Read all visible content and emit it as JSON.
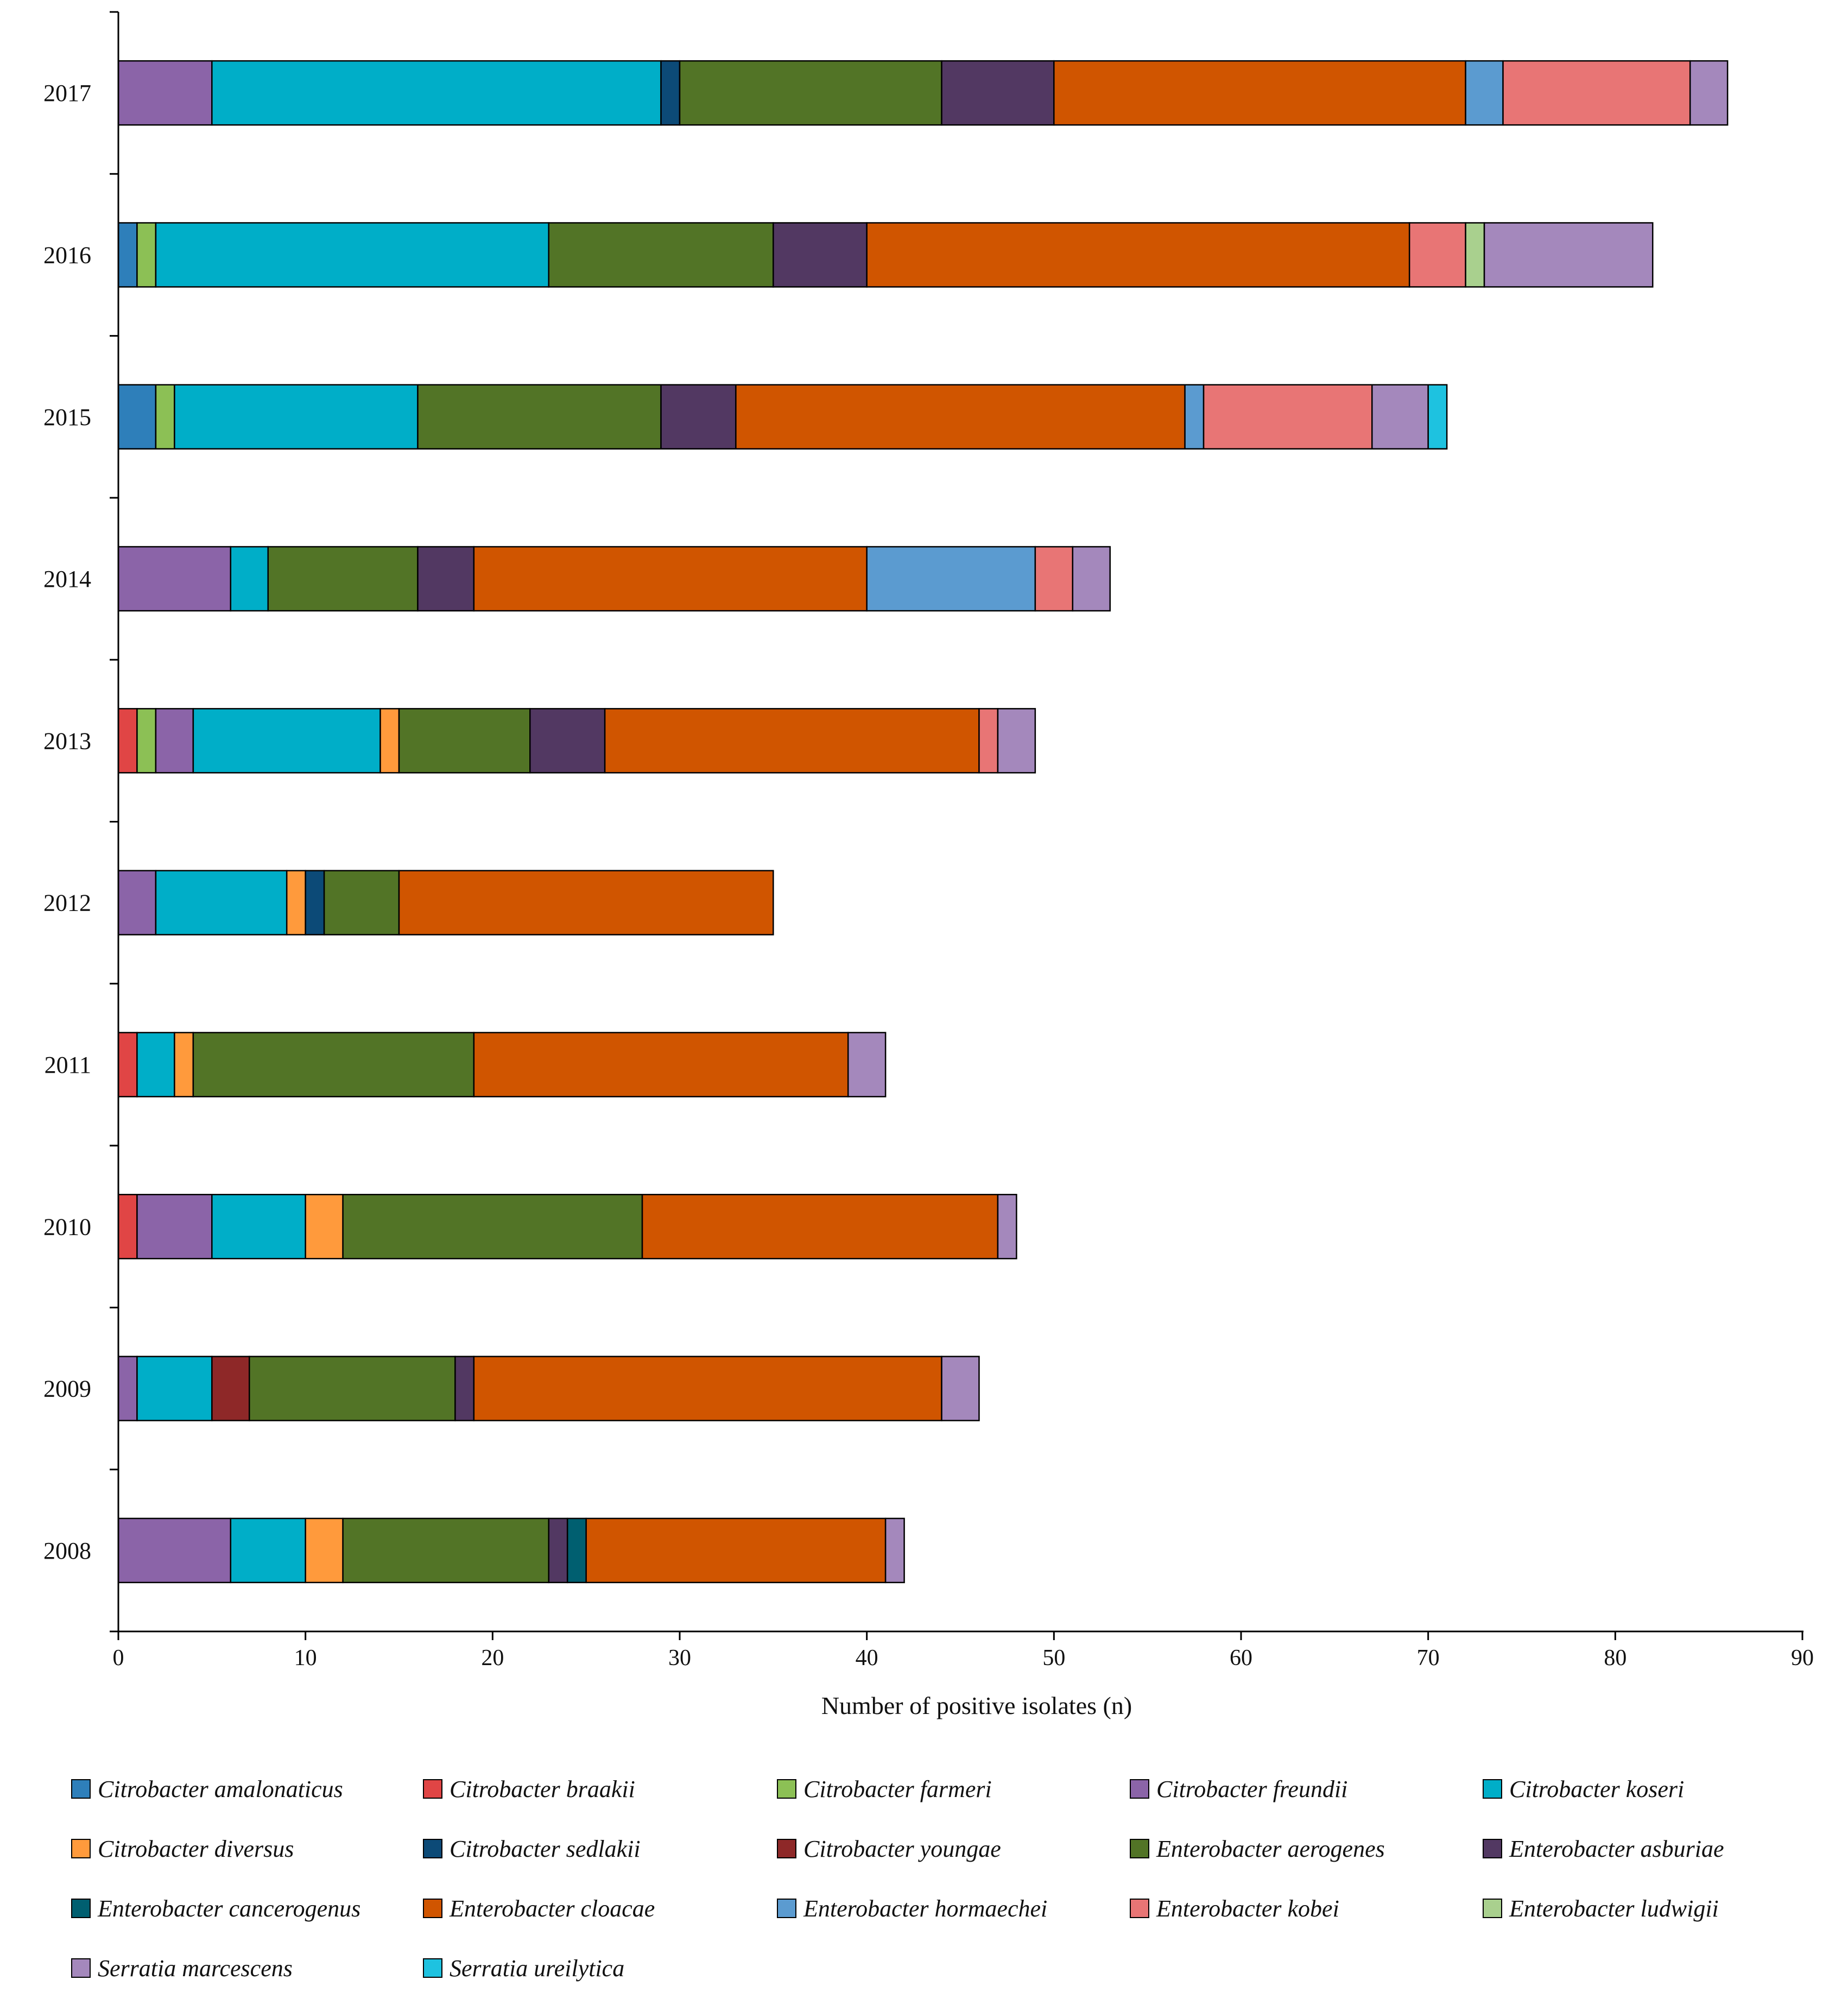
{
  "chart_data": {
    "type": "bar",
    "orientation": "horizontal",
    "stacked": true,
    "title": "",
    "xlabel": "Number of positive isolates (n)",
    "ylabel": "",
    "xlim": [
      0,
      90
    ],
    "xticks": [
      0,
      10,
      20,
      30,
      40,
      50,
      60,
      70,
      80,
      90
    ],
    "grid": false,
    "legend_position": "bottom",
    "categories": [
      "2017",
      "2016",
      "2015",
      "2014",
      "2013",
      "2012",
      "2011",
      "2010",
      "2009",
      "2008"
    ],
    "series": [
      {
        "name": "Citrobacter amalonaticus",
        "color": "#2e7fba",
        "values": [
          0,
          1,
          2,
          0,
          0,
          0,
          0,
          0,
          0,
          0
        ]
      },
      {
        "name": "Citrobacter braakii",
        "color": "#e04545",
        "values": [
          0,
          0,
          0,
          0,
          1,
          0,
          1,
          1,
          0,
          0
        ]
      },
      {
        "name": "Citrobacter farmeri",
        "color": "#8cc055",
        "values": [
          0,
          1,
          1,
          0,
          1,
          0,
          0,
          0,
          0,
          0
        ]
      },
      {
        "name": "Citrobacter freundii",
        "color": "#8b64a8",
        "values": [
          5,
          0,
          0,
          6,
          2,
          2,
          0,
          4,
          1,
          6
        ]
      },
      {
        "name": "Citrobacter koseri",
        "color": "#00aec8",
        "values": [
          24,
          21,
          13,
          2,
          10,
          7,
          2,
          5,
          4,
          4
        ]
      },
      {
        "name": "Citrobacter diversus",
        "color": "#ff9a3c",
        "values": [
          0,
          0,
          0,
          0,
          1,
          1,
          1,
          2,
          0,
          2
        ]
      },
      {
        "name": "Citrobacter sedlakii",
        "color": "#0c4a77",
        "values": [
          1,
          0,
          0,
          0,
          0,
          1,
          0,
          0,
          0,
          0
        ]
      },
      {
        "name": "Citrobacter youngae",
        "color": "#8e2828",
        "values": [
          0,
          0,
          0,
          0,
          0,
          0,
          0,
          0,
          2,
          0
        ]
      },
      {
        "name": "Enterobacter aerogenes",
        "color": "#527426",
        "values": [
          14,
          12,
          13,
          8,
          7,
          4,
          15,
          16,
          11,
          11
        ]
      },
      {
        "name": "Enterobacter asburiae",
        "color": "#523862",
        "values": [
          6,
          5,
          4,
          3,
          4,
          0,
          0,
          0,
          1,
          1
        ]
      },
      {
        "name": "Enterobacter cancerogenus",
        "color": "#005f70",
        "values": [
          0,
          0,
          0,
          0,
          0,
          0,
          0,
          0,
          0,
          1
        ]
      },
      {
        "name": "Enterobacter cloacae",
        "color": "#d05500",
        "values": [
          22,
          29,
          24,
          21,
          20,
          20,
          20,
          19,
          25,
          16
        ]
      },
      {
        "name": "Enterobacter hormaechei",
        "color": "#5b9bd0",
        "values": [
          2,
          0,
          1,
          9,
          0,
          0,
          0,
          0,
          0,
          0
        ]
      },
      {
        "name": "Enterobacter kobei",
        "color": "#e87575",
        "values": [
          10,
          3,
          9,
          2,
          1,
          0,
          0,
          0,
          0,
          0
        ]
      },
      {
        "name": "Enterobacter ludwigii",
        "color": "#a9d08e",
        "values": [
          0,
          1,
          0,
          0,
          0,
          0,
          0,
          0,
          0,
          0
        ]
      },
      {
        "name": "Serratia marcescens",
        "color": "#a488bc",
        "values": [
          2,
          9,
          3,
          2,
          2,
          0,
          2,
          1,
          2,
          1
        ]
      },
      {
        "name": "Serratia ureilytica",
        "color": "#1ec2e0",
        "values": [
          0,
          0,
          1,
          0,
          0,
          0,
          0,
          0,
          0,
          0
        ]
      }
    ]
  }
}
